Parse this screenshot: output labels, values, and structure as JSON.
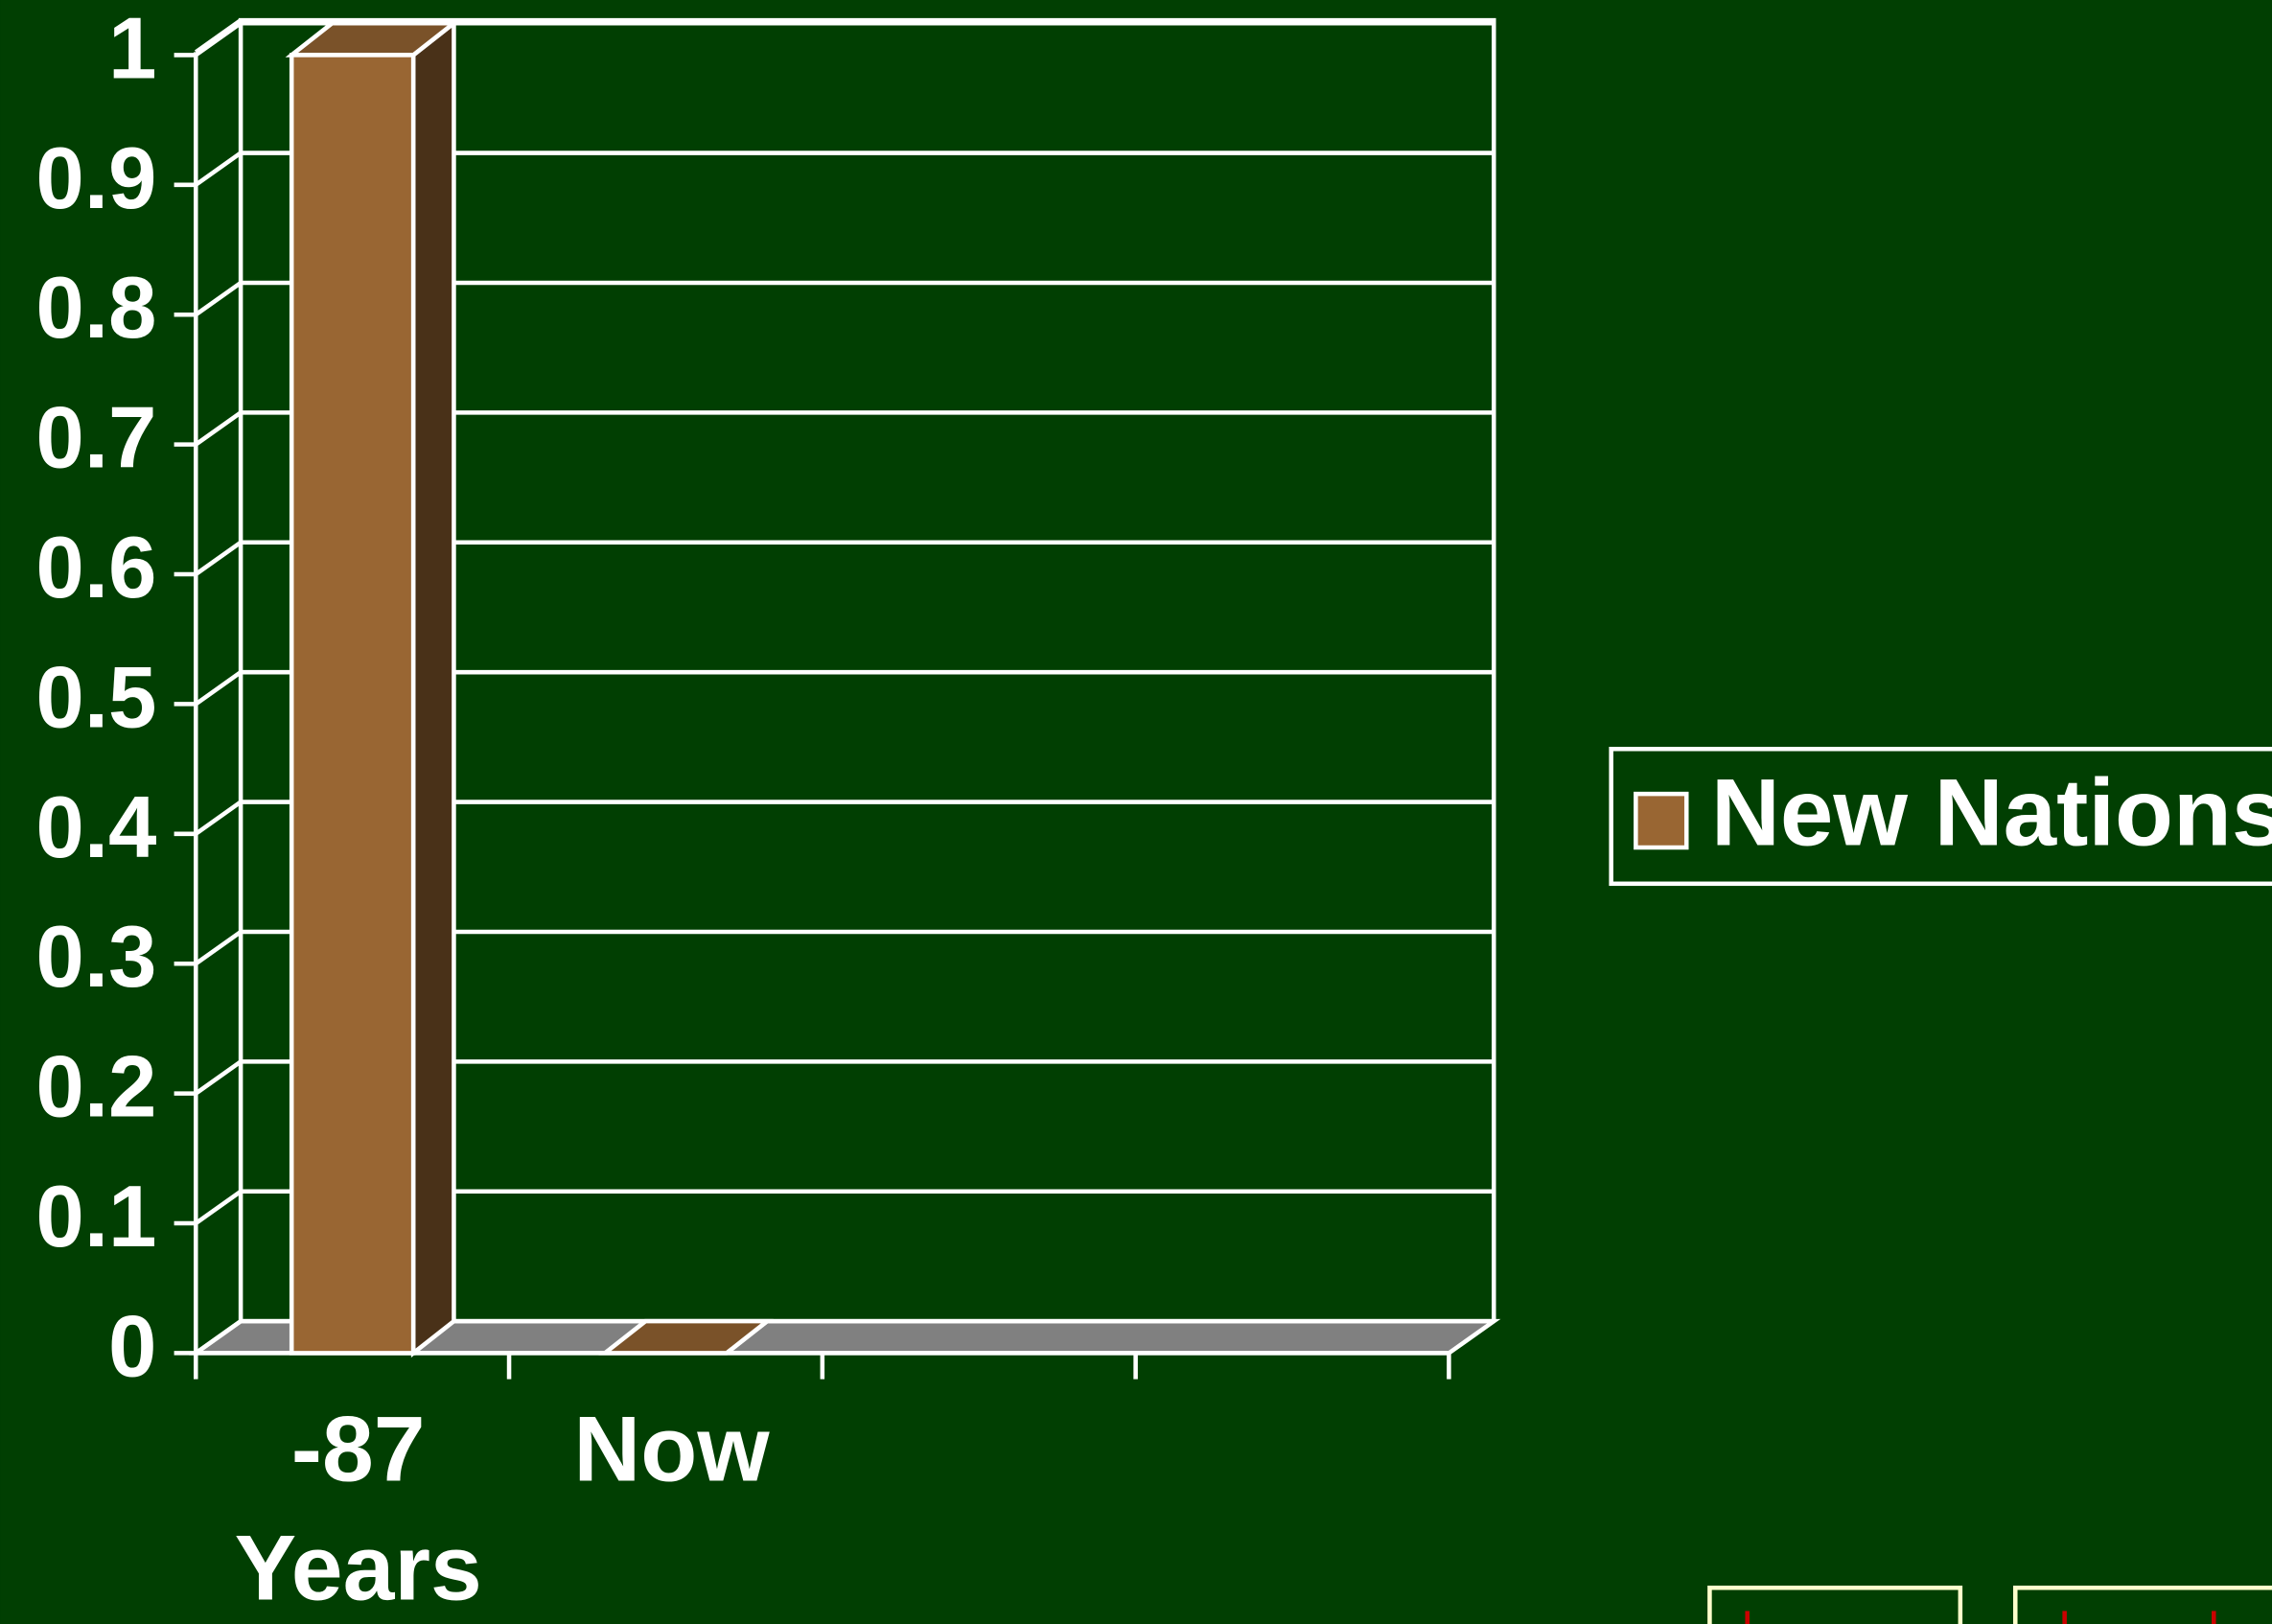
{
  "chart_data": {
    "type": "bar3d",
    "categories": [
      "-87 Years",
      "Now",
      null,
      null
    ],
    "series": [
      {
        "name": "New Nations",
        "color": "#996633",
        "values": [
          1,
          0,
          null,
          null
        ]
      }
    ],
    "ylim": [
      0,
      1
    ],
    "yticks": [
      0,
      0.1,
      0.2,
      0.3,
      0.4,
      0.5,
      0.6,
      0.7,
      0.8,
      0.9,
      1
    ],
    "grid": true,
    "legend": "right"
  }
}
